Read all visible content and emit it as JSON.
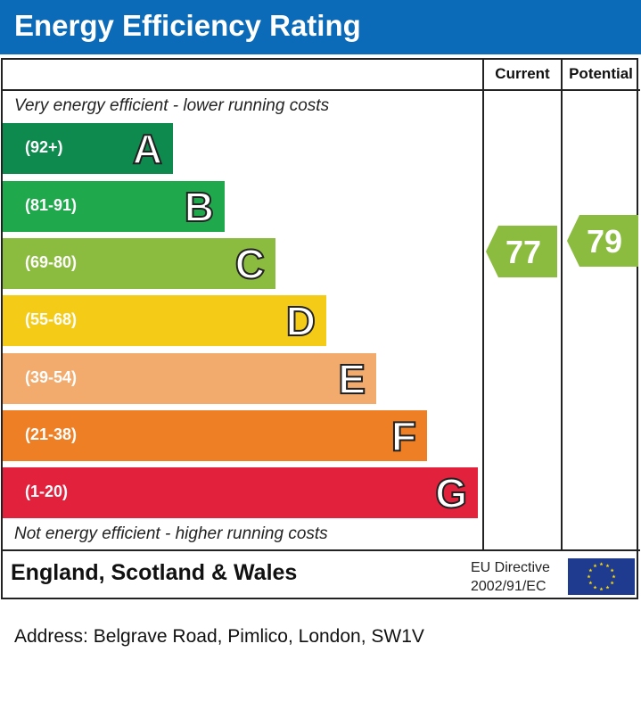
{
  "header": {
    "title": "Energy Efficiency Rating"
  },
  "columns": {
    "current": "Current",
    "potential": "Potential"
  },
  "notes": {
    "top": "Very energy efficient - lower running costs",
    "bottom": "Not energy efficient - higher running costs"
  },
  "chart_data": {
    "type": "bar",
    "title": "Energy Efficiency Rating",
    "bands": [
      {
        "letter": "A",
        "range": "(92+)",
        "color": "#0f8a4f",
        "rank": 1
      },
      {
        "letter": "B",
        "range": "(81-91)",
        "color": "#20a84d",
        "rank": 2
      },
      {
        "letter": "C",
        "range": "(69-80)",
        "color": "#8cbc3f",
        "rank": 3
      },
      {
        "letter": "D",
        "range": "(55-68)",
        "color": "#f4cc18",
        "rank": 4
      },
      {
        "letter": "E",
        "range": "(39-54)",
        "color": "#f2aa6d",
        "rank": 5
      },
      {
        "letter": "F",
        "range": "(21-38)",
        "color": "#ee7f24",
        "rank": 6
      },
      {
        "letter": "G",
        "range": "(1-20)",
        "color": "#e2213d",
        "rank": 7
      }
    ],
    "current": {
      "value": 77,
      "band": "C",
      "color": "#8cbc3f"
    },
    "potential": {
      "value": 79,
      "band": "C",
      "color": "#8cbc3f"
    }
  },
  "footer": {
    "region": "England, Scotland & Wales",
    "directive_line1": "EU Directive",
    "directive_line2": "2002/91/EC"
  },
  "address": "Address: Belgrave Road, Pimlico, London, SW1V"
}
